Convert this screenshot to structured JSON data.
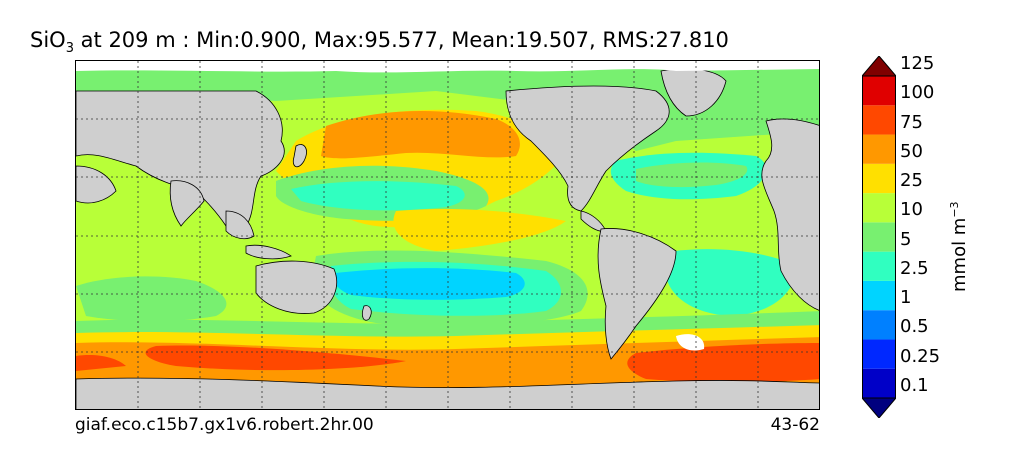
{
  "title": {
    "variable": "SiO",
    "subscript": "3",
    "rest": " at 209 m : Min:0.900, Max:95.577, Mean:19.507, RMS:27.810"
  },
  "footer": {
    "case_name": "giaf.eco.c15b7.gx1v6.robert.2hr.00",
    "years": "43-62"
  },
  "colorbar": {
    "units_prefix": "mmol m",
    "units_exponent": "−3",
    "levels": [
      "0.1",
      "0.25",
      "0.5",
      "1",
      "2.5",
      "5",
      "10",
      "25",
      "50",
      "75",
      "100",
      "125"
    ],
    "colors": [
      "#00007f",
      "#0000c8",
      "#0028ff",
      "#0080ff",
      "#00d4ff",
      "#30ffc0",
      "#78f070",
      "#b8ff38",
      "#ffe000",
      "#ff9800",
      "#ff4800",
      "#e00000",
      "#7f0000"
    ],
    "extend": "both"
  },
  "map": {
    "projection": "global cylindrical, 20E centered on Pacific",
    "land_color": "#cfcfcf",
    "missing_color": "#ffffff",
    "gridlines": "dotted"
  }
}
